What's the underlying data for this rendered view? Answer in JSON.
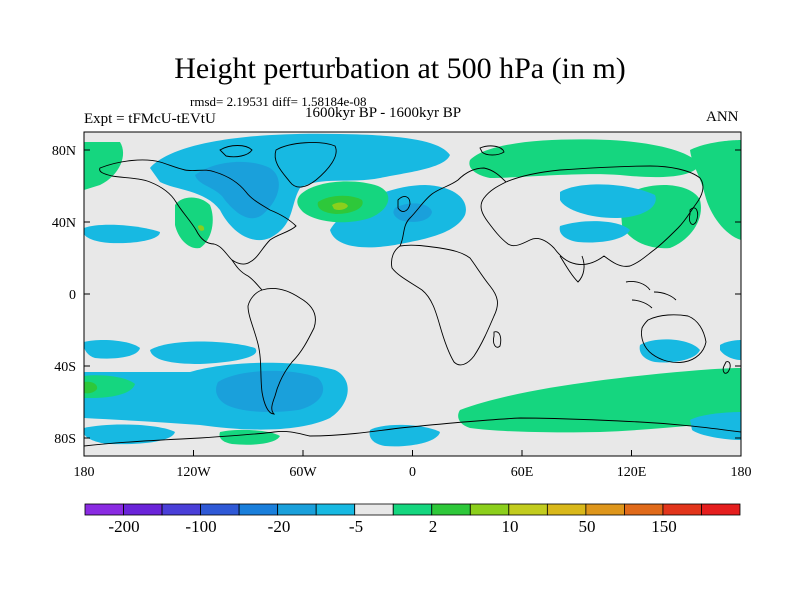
{
  "title": "Height perturbation at 500 hPa (in m)",
  "stats": "rmsd= 2.19531 diff= 1.58184e-08",
  "period": "1600kyr BP - 1600kyr BP",
  "expt": "Expt = tFMcU-tEVtU",
  "season": "ANN",
  "lat_labels": [
    "80N",
    "40N",
    "0",
    "40S",
    "80S"
  ],
  "lon_labels": [
    "180",
    "120W",
    "60W",
    "0",
    "60E",
    "120E",
    "180"
  ],
  "colorbar": {
    "labels": [
      "-200",
      "-100",
      "-20",
      "-5",
      "2",
      "10",
      "50",
      "150"
    ],
    "colors": [
      "#8a2be2",
      "#6a24d9",
      "#4a3fd8",
      "#2f59d6",
      "#1a7fdb",
      "#1aa0db",
      "#17b9e2",
      "#e8e8e8",
      "#15d67f",
      "#2ec83a",
      "#8ccf1c",
      "#c2cc1e",
      "#d9b81a",
      "#de961b",
      "#e06a1a",
      "#e2351b",
      "#e51e1e"
    ]
  },
  "palette": {
    "background": "#e8e8e8",
    "neg_weak": "#17b9e2",
    "neg_mid": "#1aa0db",
    "pos_weak": "#15d67f",
    "pos_mid": "#2ec83a",
    "pos_strong": "#8ccf1c"
  }
}
